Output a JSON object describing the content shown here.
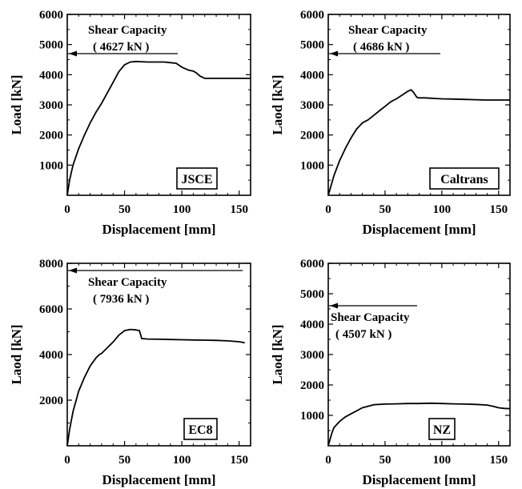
{
  "chart_data": [
    {
      "type": "line",
      "xlabel": "Displacement [mm]",
      "ylabel": "Load [kN]",
      "xlim": [
        0,
        160
      ],
      "ylim": [
        0,
        6000
      ],
      "xticks": [
        "0",
        "50",
        "100",
        "150"
      ],
      "yticks": [
        "1000",
        "2000",
        "3000",
        "4000",
        "5000",
        "6000"
      ],
      "box_label": "JSCE",
      "annotation_line1": "Shear Capacity",
      "annotation_line2": "( 4627 kN )",
      "capacity_kN": 4627,
      "x": [
        0,
        2,
        5,
        10,
        15,
        20,
        25,
        30,
        35,
        40,
        45,
        50,
        55,
        60,
        65,
        70,
        75,
        80,
        85,
        90,
        95,
        98,
        100,
        103,
        106,
        110,
        113,
        116,
        120,
        125,
        130,
        135,
        140,
        145,
        150,
        155,
        160
      ],
      "y": [
        0,
        500,
        1000,
        1550,
        2000,
        2400,
        2750,
        3050,
        3400,
        3750,
        4100,
        4330,
        4420,
        4440,
        4430,
        4420,
        4420,
        4420,
        4420,
        4400,
        4380,
        4300,
        4250,
        4200,
        4150,
        4120,
        4050,
        3950,
        3880,
        3880,
        3880,
        3880,
        3880,
        3880,
        3880,
        3880,
        3880
      ]
    },
    {
      "type": "line",
      "xlabel": "Displacement [mm]",
      "ylabel": "Laod [kN]",
      "xlim": [
        0,
        160
      ],
      "ylim": [
        0,
        6000
      ],
      "xticks": [
        "0",
        "50",
        "100",
        "150"
      ],
      "yticks": [
        "1000",
        "2000",
        "3000",
        "4000",
        "5000",
        "6000"
      ],
      "box_label": "Caltrans",
      "annotation_line1": "Shear Capacity",
      "annotation_line2": "( 4686 kN )",
      "capacity_kN": 4686,
      "x": [
        0,
        5,
        10,
        15,
        20,
        25,
        30,
        35,
        40,
        45,
        50,
        55,
        60,
        65,
        70,
        73,
        75,
        78,
        80,
        85,
        90,
        95,
        100,
        110,
        120,
        130,
        140,
        150,
        160
      ],
      "y": [
        0,
        650,
        1150,
        1550,
        1900,
        2200,
        2400,
        2500,
        2650,
        2800,
        2950,
        3100,
        3200,
        3320,
        3450,
        3500,
        3420,
        3250,
        3230,
        3230,
        3220,
        3210,
        3200,
        3190,
        3180,
        3170,
        3160,
        3160,
        3160
      ]
    },
    {
      "type": "line",
      "xlabel": "Displacement [mm]",
      "ylabel": "Laod [kN]",
      "xlim": [
        0,
        160
      ],
      "ylim": [
        0,
        8000
      ],
      "xticks": [
        "0",
        "50",
        "100",
        "150"
      ],
      "yticks": [
        "2000",
        "4000",
        "6000",
        "8000"
      ],
      "box_label": "EC8",
      "annotation_line1": "Shear Capacity",
      "annotation_line2": "( 7936 kN )",
      "capacity_kN": 7936,
      "x": [
        0,
        2,
        5,
        10,
        15,
        20,
        25,
        28,
        30,
        35,
        40,
        45,
        50,
        55,
        60,
        63,
        65,
        70,
        80,
        90,
        100,
        110,
        120,
        130,
        140,
        150,
        155
      ],
      "y": [
        0,
        700,
        1500,
        2400,
        3000,
        3500,
        3850,
        4000,
        4050,
        4300,
        4550,
        4850,
        5050,
        5100,
        5080,
        5050,
        4700,
        4680,
        4670,
        4660,
        4650,
        4640,
        4630,
        4620,
        4600,
        4560,
        4520
      ]
    },
    {
      "type": "line",
      "xlabel": "Displacement [mm]",
      "ylabel": "Laod [kN]",
      "xlim": [
        0,
        160
      ],
      "ylim": [
        0,
        6000
      ],
      "xticks": [
        "0",
        "50",
        "100",
        "150"
      ],
      "yticks": [
        "1000",
        "2000",
        "3000",
        "4000",
        "5000",
        "6000"
      ],
      "box_label": "NZ",
      "annotation_line1": "Shear Capacity",
      "annotation_line2": "( 4507 kN )",
      "capacity_kN": 4507,
      "x": [
        0,
        3,
        5,
        10,
        15,
        20,
        25,
        30,
        35,
        40,
        50,
        60,
        70,
        80,
        90,
        100,
        110,
        120,
        130,
        140,
        145,
        150,
        155,
        160
      ],
      "y": [
        0,
        400,
        600,
        800,
        950,
        1050,
        1150,
        1250,
        1300,
        1350,
        1370,
        1380,
        1390,
        1390,
        1400,
        1390,
        1380,
        1370,
        1360,
        1340,
        1300,
        1250,
        1230,
        1220
      ]
    }
  ]
}
